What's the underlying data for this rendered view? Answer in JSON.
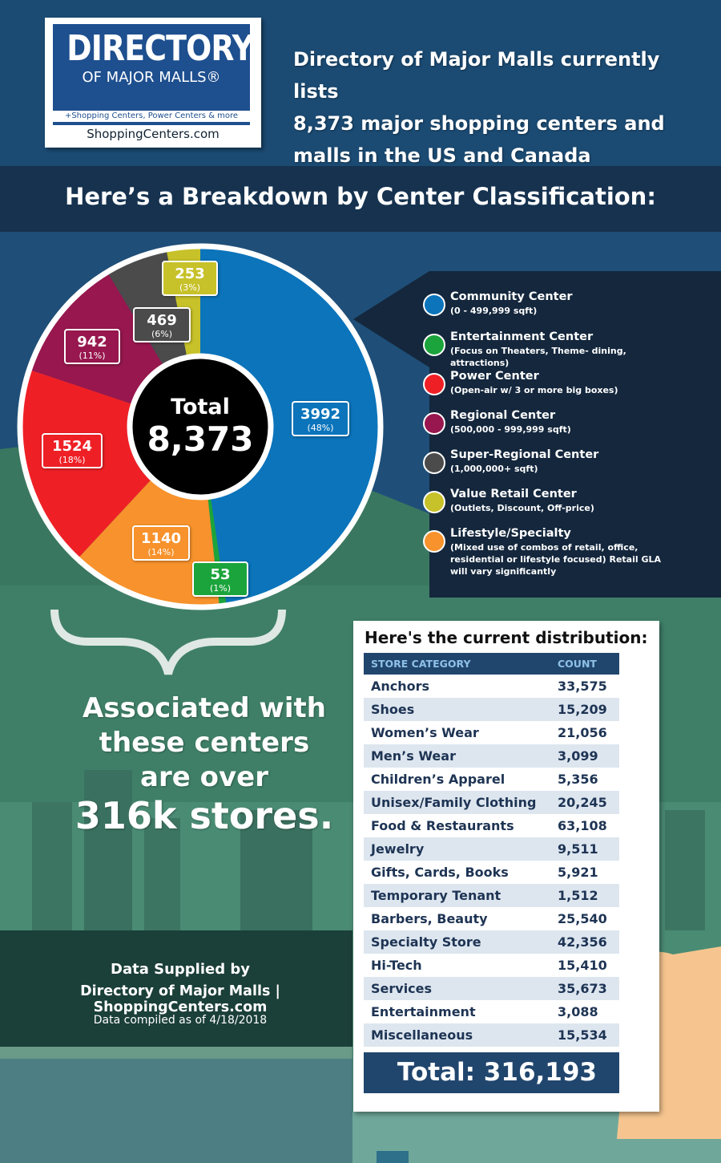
{
  "header": {
    "logo_title": "DIRECTORY",
    "logo_subtitle": "OF MAJOR MALLS®",
    "logo_tagline": "+Shopping Centers, Power Centers & more",
    "logo_site": "ShoppingCenters.com",
    "intro_lines": [
      "Directory of Major Malls currently lists",
      "8,373 major shopping centers and",
      "malls in the US and Canada"
    ]
  },
  "band_title": "Here’s a Breakdown by Center Classification:",
  "pie": {
    "center_label": "Total",
    "center_value": "8,373"
  },
  "chart_data": [
    {
      "type": "pie",
      "total": 8373,
      "slices": [
        {
          "name": "Community Center",
          "value": 3992,
          "percent": "48%",
          "color": "#0b74bb"
        },
        {
          "name": "Entertainment Center",
          "value": 53,
          "percent": "1%",
          "color": "#1ca43c"
        },
        {
          "name": "Lifestyle/Specialty",
          "value": 1140,
          "percent": "14%",
          "color": "#f7922c"
        },
        {
          "name": "Power Center",
          "value": 1524,
          "percent": "18%",
          "color": "#ee2026"
        },
        {
          "name": "Regional Center",
          "value": 942,
          "percent": "11%",
          "color": "#97174e"
        },
        {
          "name": "Super-Regional Center",
          "value": 469,
          "percent": "6%",
          "color": "#4b4b4b"
        },
        {
          "name": "Value Retail Center",
          "value": 253,
          "percent": "3%",
          "color": "#c7c12a"
        }
      ]
    },
    {
      "type": "table",
      "title": "Here's the current distribution:",
      "columns": [
        "STORE CATEGORY",
        "COUNT"
      ],
      "rows": [
        [
          "Anchors",
          "33,575"
        ],
        [
          "Shoes",
          "15,209"
        ],
        [
          "Women’s Wear",
          "21,056"
        ],
        [
          "Men’s Wear",
          "3,099"
        ],
        [
          "Children’s Apparel",
          "5,356"
        ],
        [
          "Unisex/Family Clothing",
          "20,245"
        ],
        [
          "Food & Restaurants",
          "63,108"
        ],
        [
          "Jewelry",
          "9,511"
        ],
        [
          "Gifts, Cards, Books",
          "5,921"
        ],
        [
          "Temporary Tenant",
          "1,512"
        ],
        [
          "Barbers, Beauty",
          "25,540"
        ],
        [
          "Specialty Store",
          "42,356"
        ],
        [
          "Hi-Tech",
          "15,410"
        ],
        [
          "Services",
          "35,673"
        ],
        [
          "Entertainment",
          "3,088"
        ],
        [
          "Miscellaneous",
          "15,534"
        ]
      ],
      "total_label": "Total:  316,193"
    }
  ],
  "legend": [
    {
      "name": "Community Center",
      "desc": "(0 - 499,999 sqft)",
      "color": "#0b74bb"
    },
    {
      "name": "Entertainment Center",
      "desc": "(Focus on Theaters, Theme- dining, attractions)",
      "color": "#1ca43c"
    },
    {
      "name": "Power Center",
      "desc": "(Open-air w/ 3 or more big boxes)",
      "color": "#ee2026"
    },
    {
      "name": "Regional Center",
      "desc": "(500,000 - 999,999 sqft)",
      "color": "#97174e"
    },
    {
      "name": "Super-Regional Center",
      "desc": "(1,000,000+ sqft)",
      "color": "#4b4b4b"
    },
    {
      "name": "Value Retail Center",
      "desc": "(Outlets, Discount, Off-price)",
      "color": "#c7c12a"
    },
    {
      "name": "Lifestyle/Specialty",
      "desc": "(Mixed use of combos of retail, office, residential or lifestyle focused) Retail GLA will vary significantly",
      "color": "#f7922c"
    }
  ],
  "associated": {
    "lines": [
      "Associated with",
      "these centers",
      "are over"
    ],
    "big": "316k stores."
  },
  "footer": {
    "line1": "Data Supplied by",
    "line2": "Directory of Major Malls | ShoppingCenters.com",
    "line3": "Data compiled as of 4/18/2018"
  }
}
